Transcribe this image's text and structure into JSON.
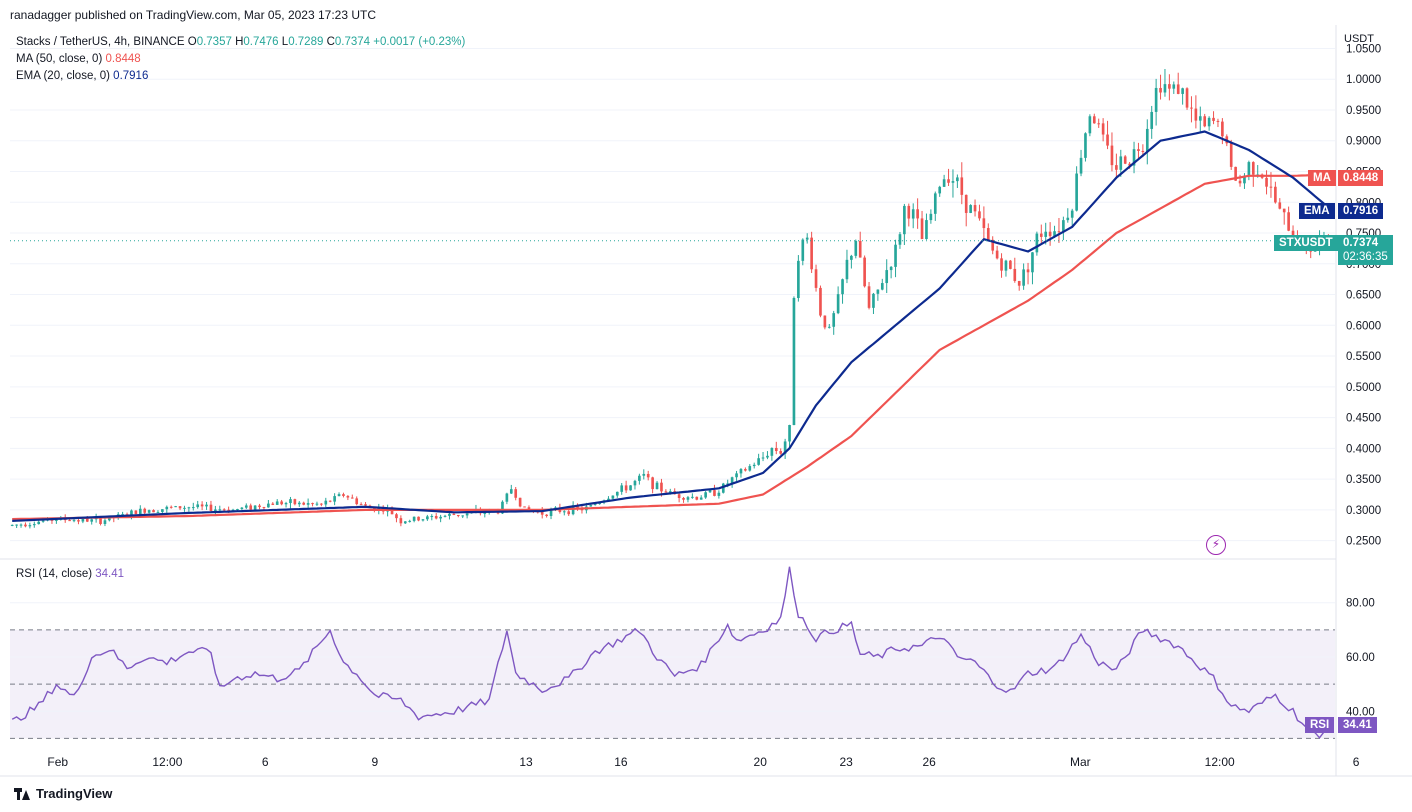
{
  "header": {
    "published_line": "ranadagger published on TradingView.com, Mar 05, 2023 17:23 UTC"
  },
  "legend": {
    "symbol": "Stacks / TetherUS, 4h, BINANCE",
    "o_label": "O",
    "o_value": "0.7357",
    "h_label": "H",
    "h_value": "0.7476",
    "l_label": "L",
    "l_value": "0.7289",
    "c_label": "C",
    "c_value": "0.7374",
    "change": "+0.0017 (+0.23%)",
    "ma_label": "MA (50, close, 0)",
    "ma_value": "0.8448",
    "ema_label": "EMA (20, close, 0)",
    "ema_value": "0.7916",
    "rsi_label": "RSI (14, close)",
    "rsi_value": "34.41"
  },
  "price_axis": {
    "unit": "USDT",
    "ticks": [
      "1.0500",
      "1.0000",
      "0.9500",
      "0.9000",
      "0.8500",
      "0.8000",
      "0.7500",
      "0.7000",
      "0.6500",
      "0.6000",
      "0.5500",
      "0.5000",
      "0.4500",
      "0.4000",
      "0.3500",
      "0.3000",
      "0.2500"
    ]
  },
  "rsi_axis": {
    "ticks": [
      "80.00",
      "60.00",
      "40.00"
    ]
  },
  "tags": {
    "ma_tag": "MA",
    "ma_val": "0.8448",
    "ema_tag": "EMA",
    "ema_val": "0.7916",
    "sym_tag": "STXUSDT",
    "sym_val": "0.7374",
    "countdown": "02:36:35",
    "rsi_tag": "RSI",
    "rsi_val": "34.41"
  },
  "time_axis": [
    "Feb",
    "12:00",
    "6",
    "9",
    "13",
    "16",
    "20",
    "23",
    "26",
    "Mar",
    "12:00",
    "6"
  ],
  "footer": {
    "brand": "TradingView"
  },
  "colors": {
    "up": "#26a69a",
    "down": "#ef5350",
    "ma": "#ef5350",
    "ema": "#0d2a8f",
    "rsi": "#7e57c2"
  },
  "chart_data": {
    "type": "candlestick",
    "title": "Stacks / TetherUS, 4h, BINANCE",
    "ylim": [
      0.225,
      1.08
    ],
    "rsi_levels": [
      70,
      50,
      30
    ],
    "rsi_ylim": [
      25,
      95
    ],
    "close_points": [
      [
        0,
        0.275
      ],
      [
        10,
        0.285
      ],
      [
        20,
        0.282
      ],
      [
        30,
        0.3
      ],
      [
        40,
        0.305
      ],
      [
        50,
        0.3
      ],
      [
        60,
        0.312
      ],
      [
        70,
        0.308
      ],
      [
        75,
        0.325
      ],
      [
        80,
        0.305
      ],
      [
        85,
        0.3
      ],
      [
        88,
        0.282
      ],
      [
        92,
        0.285
      ],
      [
        100,
        0.292
      ],
      [
        110,
        0.298
      ],
      [
        113,
        0.335
      ],
      [
        116,
        0.3
      ],
      [
        120,
        0.295
      ],
      [
        125,
        0.3
      ],
      [
        130,
        0.302
      ],
      [
        135,
        0.322
      ],
      [
        140,
        0.34
      ],
      [
        143,
        0.355
      ],
      [
        146,
        0.336
      ],
      [
        150,
        0.325
      ],
      [
        155,
        0.32
      ],
      [
        160,
        0.332
      ],
      [
        163,
        0.35
      ],
      [
        166,
        0.365
      ],
      [
        170,
        0.385
      ],
      [
        172,
        0.4
      ],
      [
        174,
        0.395
      ],
      [
        176,
        0.43
      ],
      [
        177,
        0.655
      ],
      [
        178,
        0.72
      ],
      [
        180,
        0.74
      ],
      [
        181,
        0.7
      ],
      [
        183,
        0.62
      ],
      [
        185,
        0.59
      ],
      [
        187,
        0.64
      ],
      [
        189,
        0.7
      ],
      [
        191,
        0.74
      ],
      [
        192,
        0.7
      ],
      [
        194,
        0.625
      ],
      [
        196,
        0.655
      ],
      [
        198,
        0.69
      ],
      [
        200,
        0.72
      ],
      [
        202,
        0.79
      ],
      [
        204,
        0.78
      ],
      [
        206,
        0.74
      ],
      [
        208,
        0.78
      ],
      [
        210,
        0.83
      ],
      [
        212,
        0.85
      ],
      [
        214,
        0.83
      ],
      [
        216,
        0.8
      ],
      [
        218,
        0.78
      ],
      [
        220,
        0.75
      ],
      [
        222,
        0.72
      ],
      [
        224,
        0.7
      ],
      [
        226,
        0.69
      ],
      [
        228,
        0.67
      ],
      [
        230,
        0.7
      ],
      [
        232,
        0.74
      ],
      [
        234,
        0.76
      ],
      [
        236,
        0.755
      ],
      [
        238,
        0.77
      ],
      [
        240,
        0.8
      ],
      [
        242,
        0.88
      ],
      [
        244,
        0.95
      ],
      [
        246,
        0.92
      ],
      [
        248,
        0.88
      ],
      [
        250,
        0.86
      ],
      [
        252,
        0.87
      ],
      [
        254,
        0.88
      ],
      [
        256,
        0.9
      ],
      [
        258,
        0.96
      ],
      [
        260,
        1.0
      ],
      [
        262,
        0.98
      ],
      [
        264,
        0.99
      ],
      [
        266,
        0.96
      ],
      [
        268,
        0.93
      ],
      [
        270,
        0.92
      ],
      [
        272,
        0.93
      ],
      [
        274,
        0.92
      ],
      [
        276,
        0.85
      ],
      [
        278,
        0.83
      ],
      [
        280,
        0.86
      ],
      [
        282,
        0.86
      ],
      [
        284,
        0.83
      ],
      [
        286,
        0.8
      ],
      [
        288,
        0.77
      ],
      [
        290,
        0.75
      ],
      [
        292,
        0.73
      ],
      [
        294,
        0.725
      ],
      [
        296,
        0.735
      ],
      [
        298,
        0.7374
      ]
    ],
    "ma50_points": [
      [
        0,
        0.285
      ],
      [
        40,
        0.29
      ],
      [
        80,
        0.3
      ],
      [
        120,
        0.3
      ],
      [
        160,
        0.31
      ],
      [
        170,
        0.325
      ],
      [
        180,
        0.37
      ],
      [
        190,
        0.42
      ],
      [
        200,
        0.49
      ],
      [
        210,
        0.56
      ],
      [
        220,
        0.6
      ],
      [
        230,
        0.64
      ],
      [
        240,
        0.69
      ],
      [
        250,
        0.75
      ],
      [
        260,
        0.79
      ],
      [
        270,
        0.83
      ],
      [
        280,
        0.843
      ],
      [
        290,
        0.843
      ],
      [
        298,
        0.8448
      ]
    ],
    "ema20_points": [
      [
        0,
        0.282
      ],
      [
        40,
        0.295
      ],
      [
        80,
        0.305
      ],
      [
        100,
        0.296
      ],
      [
        120,
        0.298
      ],
      [
        140,
        0.32
      ],
      [
        160,
        0.335
      ],
      [
        170,
        0.36
      ],
      [
        176,
        0.4
      ],
      [
        182,
        0.47
      ],
      [
        190,
        0.54
      ],
      [
        200,
        0.6
      ],
      [
        210,
        0.66
      ],
      [
        220,
        0.74
      ],
      [
        230,
        0.72
      ],
      [
        240,
        0.76
      ],
      [
        250,
        0.84
      ],
      [
        260,
        0.9
      ],
      [
        270,
        0.915
      ],
      [
        280,
        0.885
      ],
      [
        290,
        0.84
      ],
      [
        298,
        0.7916
      ]
    ],
    "rsi_points": [
      [
        0,
        36
      ],
      [
        6,
        42
      ],
      [
        10,
        50
      ],
      [
        14,
        45
      ],
      [
        18,
        60
      ],
      [
        22,
        63
      ],
      [
        26,
        56
      ],
      [
        30,
        60
      ],
      [
        35,
        58
      ],
      [
        40,
        62
      ],
      [
        45,
        62
      ],
      [
        47,
        48
      ],
      [
        50,
        52
      ],
      [
        55,
        54
      ],
      [
        60,
        52
      ],
      [
        65,
        55
      ],
      [
        72,
        70
      ],
      [
        75,
        58
      ],
      [
        78,
        54
      ],
      [
        82,
        46
      ],
      [
        88,
        44
      ],
      [
        92,
        38
      ],
      [
        100,
        40
      ],
      [
        108,
        44
      ],
      [
        112,
        70
      ],
      [
        114,
        54
      ],
      [
        120,
        48
      ],
      [
        126,
        52
      ],
      [
        132,
        62
      ],
      [
        136,
        65
      ],
      [
        142,
        70
      ],
      [
        146,
        60
      ],
      [
        150,
        53
      ],
      [
        156,
        57
      ],
      [
        162,
        72
      ],
      [
        164,
        66
      ],
      [
        170,
        70
      ],
      [
        174,
        74
      ],
      [
        176,
        92
      ],
      [
        178,
        76
      ],
      [
        182,
        67
      ],
      [
        186,
        70
      ],
      [
        190,
        72
      ],
      [
        192,
        61
      ],
      [
        196,
        60
      ],
      [
        200,
        63
      ],
      [
        206,
        64
      ],
      [
        210,
        68
      ],
      [
        214,
        60
      ],
      [
        218,
        58
      ],
      [
        222,
        51
      ],
      [
        226,
        47
      ],
      [
        230,
        54
      ],
      [
        236,
        56
      ],
      [
        242,
        68
      ],
      [
        246,
        58
      ],
      [
        250,
        55
      ],
      [
        256,
        70
      ],
      [
        260,
        67
      ],
      [
        264,
        64
      ],
      [
        268,
        58
      ],
      [
        272,
        52
      ],
      [
        276,
        42
      ],
      [
        280,
        40
      ],
      [
        284,
        44
      ],
      [
        286,
        46
      ],
      [
        290,
        40
      ],
      [
        294,
        32
      ],
      [
        296,
        30
      ],
      [
        298,
        34.41
      ]
    ]
  }
}
